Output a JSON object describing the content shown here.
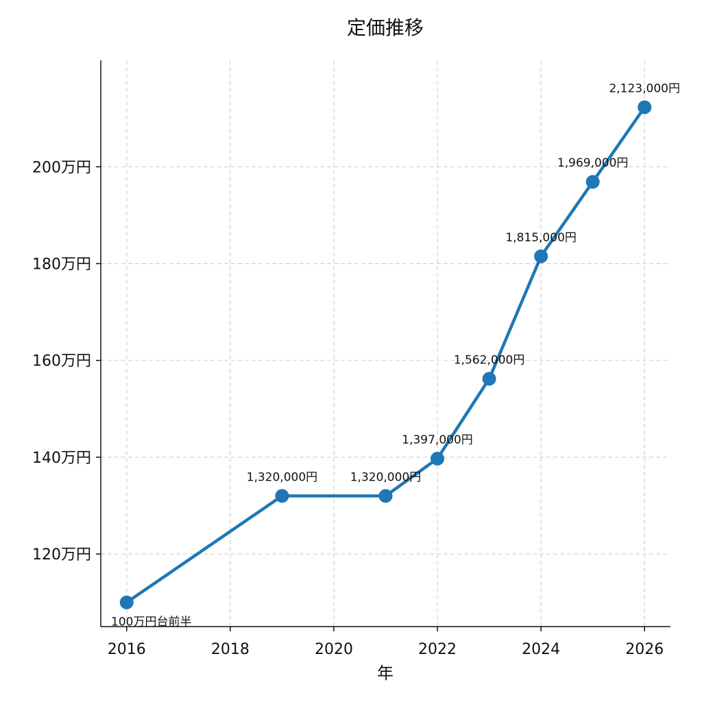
{
  "chart_data": {
    "type": "line",
    "title": "定価推移",
    "xlabel": "年",
    "ylabel": "",
    "xlim": [
      2015.5,
      2026.5
    ],
    "ylim": [
      105,
      222
    ],
    "x_ticks": [
      2016,
      2018,
      2020,
      2022,
      2024,
      2026
    ],
    "x_tick_labels": [
      "2016",
      "2018",
      "2020",
      "2022",
      "2024",
      "2026"
    ],
    "y_ticks": [
      120,
      140,
      160,
      180,
      200
    ],
    "y_tick_labels": [
      "120万円",
      "140万円",
      "160万円",
      "180万円",
      "200万円"
    ],
    "grid": true,
    "color": "#1f77b4",
    "series": [
      {
        "x": [
          2016,
          2019,
          2021,
          2022,
          2023,
          2024,
          2025,
          2026
        ],
        "y": [
          110,
          132,
          132,
          139.7,
          156.2,
          181.5,
          196.9,
          212.3
        ],
        "labels": [
          "100万円台前半",
          "1,320,000円",
          "1,320,000円",
          "1,397,000円",
          "1,562,000円",
          "1,815,000円",
          "1,969,000円",
          "2,123,000円"
        ]
      }
    ]
  }
}
